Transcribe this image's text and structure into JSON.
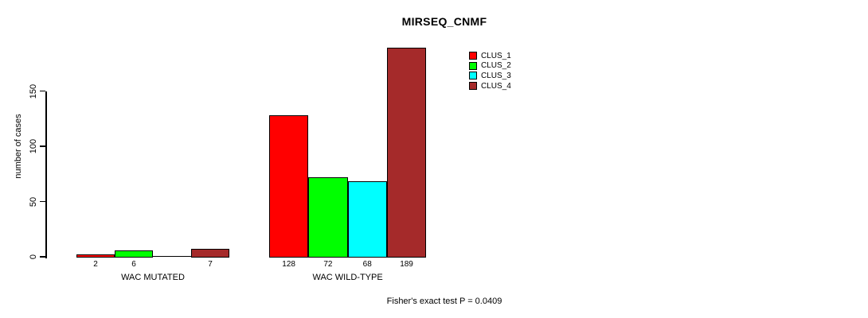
{
  "title": "MIRSEQ_CNMF",
  "footer": "Fisher's exact test P = 0.0409",
  "colors": {
    "clus_1": "#ff0000",
    "clus_2": "#00ff00",
    "clus_3": "#00ffff",
    "clus_4": "#a52a2a",
    "axis": "#000000",
    "background": "#ffffff"
  },
  "chart_data": {
    "type": "bar",
    "title": "MIRSEQ_CNMF",
    "xlabel": "",
    "ylabel": "number of cases",
    "categories": [
      "WAC MUTATED",
      "WAC WILD-TYPE"
    ],
    "series": [
      {
        "name": "CLUS_1",
        "color": "#ff0000",
        "values": [
          2,
          128
        ]
      },
      {
        "name": "CLUS_2",
        "color": "#00ff00",
        "values": [
          6,
          72
        ]
      },
      {
        "name": "CLUS_3",
        "color": "#00ffff",
        "values": [
          0,
          68
        ]
      },
      {
        "name": "CLUS_4",
        "color": "#a52a2a",
        "values": [
          7,
          189
        ]
      }
    ],
    "bar_labels": [
      [
        "2",
        "6",
        "",
        "7"
      ],
      [
        "128",
        "72",
        "68",
        "189"
      ]
    ],
    "yticks": [
      0,
      50,
      100,
      150
    ],
    "ylim": [
      0,
      196
    ],
    "grid": false,
    "legend_position": "inside-top-right",
    "annotation": "Fisher's exact test P = 0.0409"
  }
}
